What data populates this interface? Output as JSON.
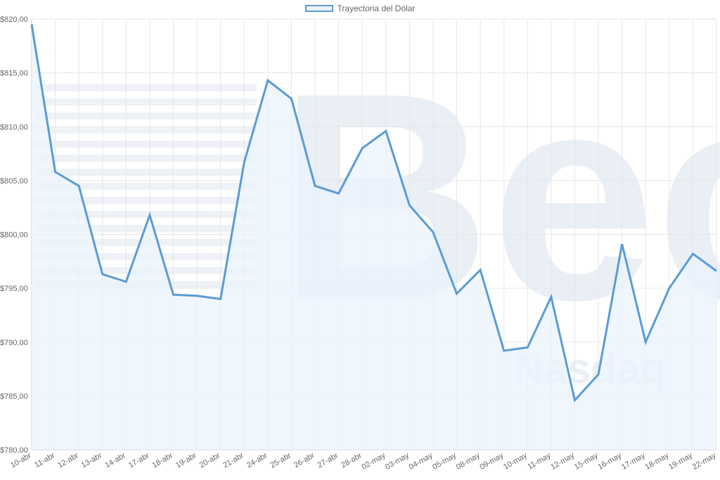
{
  "legend": {
    "label": "Trayectoria del Dólar"
  },
  "colors": {
    "line": "#5b9bd5",
    "fill": "#eaf3fc",
    "grid": "#e6e6e6",
    "tick": "#666666",
    "watermark": "#d9e3ee"
  },
  "watermark": {
    "text": "Bec",
    "subtext": "Nasdaq"
  },
  "chart_data": {
    "type": "area",
    "title": "",
    "xlabel": "",
    "ylabel": "",
    "ylim": [
      780,
      820
    ],
    "yticks": [
      780,
      785,
      790,
      795,
      800,
      805,
      810,
      815,
      820
    ],
    "ytick_labels": [
      "$780,00",
      "$785,00",
      "$790,00",
      "$795,00",
      "$800,00",
      "$805,00",
      "$810,00",
      "$815,00",
      "$820,00"
    ],
    "grid": true,
    "legend_position": "top-center",
    "categories": [
      "10-abr",
      "11-abr",
      "12-abr",
      "13-abr",
      "14-abr",
      "17-abr",
      "18-abr",
      "19-abr",
      "20-abr",
      "21-abr",
      "24-abr",
      "25-abr",
      "26-abr",
      "27-abr",
      "28-abr",
      "02-may",
      "03-may",
      "04-may",
      "05-may",
      "08-may",
      "09-may",
      "10-may",
      "11-may",
      "12-may",
      "15-may",
      "16-may",
      "17-may",
      "18-may",
      "19-may",
      "22-may"
    ],
    "series": [
      {
        "name": "Trayectoria del Dólar",
        "values": [
          819.5,
          805.8,
          804.5,
          796.3,
          795.6,
          801.8,
          794.4,
          794.3,
          794.0,
          806.7,
          814.3,
          812.6,
          804.5,
          803.8,
          808.0,
          809.6,
          802.7,
          800.2,
          794.5,
          796.7,
          789.2,
          789.5,
          794.2,
          784.6,
          787.0,
          799.1,
          790.0,
          795.0,
          798.2,
          796.6
        ]
      }
    ]
  }
}
